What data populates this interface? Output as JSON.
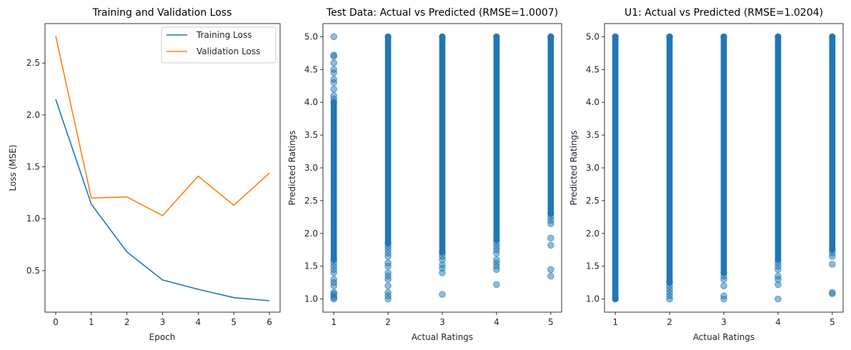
{
  "chart_data": [
    {
      "type": "line",
      "title": "Training and Validation Loss",
      "xlabel": "Epoch",
      "ylabel": "Loss (MSE)",
      "x": [
        0,
        1,
        2,
        3,
        4,
        5,
        6
      ],
      "xlim": [
        -0.3,
        6.3
      ],
      "ylim": [
        0.1,
        2.88
      ],
      "xticks": [
        "0",
        "1",
        "2",
        "3",
        "4",
        "5",
        "6"
      ],
      "yticks": [
        "0.5",
        "1.0",
        "1.5",
        "2.0",
        "2.5"
      ],
      "legend_position": "top-right",
      "grid": false,
      "series": [
        {
          "name": "Training Loss",
          "color": "#1f77b4",
          "values": [
            2.15,
            1.14,
            0.68,
            0.41,
            0.32,
            0.24,
            0.21
          ]
        },
        {
          "name": "Validation Loss",
          "color": "#ff7f0e",
          "values": [
            2.76,
            1.2,
            1.21,
            1.03,
            1.41,
            1.13,
            1.44
          ]
        }
      ]
    },
    {
      "type": "scatter",
      "title": "Test Data: Actual vs Predicted (RMSE=1.0007)",
      "xlabel": "Actual Ratings",
      "ylabel": "Predicted Ratings",
      "xlim": [
        0.8,
        5.2
      ],
      "ylim": [
        0.8,
        5.2
      ],
      "xticks": [
        "1",
        "2",
        "3",
        "4",
        "5"
      ],
      "yticks": [
        "1.0",
        "1.5",
        "2.0",
        "2.5",
        "3.0",
        "3.5",
        "4.0",
        "4.5",
        "5.0"
      ],
      "grid": false,
      "point_color": "#1f77b4",
      "point_alpha": 0.5,
      "columns": [
        {
          "x": 1,
          "band": [
            1.6,
            4.0
          ],
          "points": [
            1.0,
            1.02,
            1.05,
            1.08,
            1.1,
            1.2,
            1.25,
            1.3,
            1.4,
            1.45,
            1.5,
            1.55,
            4.05,
            4.1,
            4.2,
            4.3,
            4.35,
            4.45,
            4.5,
            4.6,
            4.7,
            4.72,
            5.0
          ]
        },
        {
          "x": 2,
          "band": [
            1.85,
            5.0
          ],
          "points": [
            1.0,
            1.05,
            1.1,
            1.2,
            1.3,
            1.35,
            1.4,
            1.5,
            1.55,
            1.65,
            1.7,
            1.75,
            1.8
          ]
        },
        {
          "x": 3,
          "band": [
            1.72,
            5.0
          ],
          "points": [
            1.07,
            1.4,
            1.47,
            1.52,
            1.6,
            1.65,
            1.7
          ]
        },
        {
          "x": 4,
          "band": [
            1.9,
            5.0
          ],
          "points": [
            1.22,
            1.45,
            1.5,
            1.55,
            1.6,
            1.7,
            1.75,
            1.8,
            1.85
          ]
        },
        {
          "x": 5,
          "band": [
            2.3,
            5.0
          ],
          "points": [
            1.35,
            1.45,
            1.82,
            1.93,
            2.15,
            2.2,
            2.25
          ]
        }
      ]
    },
    {
      "type": "scatter",
      "title": "U1: Actual vs Predicted (RMSE=1.0204)",
      "xlabel": "Actual Ratings",
      "ylabel": "Predicted Ratings",
      "xlim": [
        0.8,
        5.2
      ],
      "ylim": [
        0.8,
        5.2
      ],
      "xticks": [
        "1",
        "2",
        "3",
        "4",
        "5"
      ],
      "yticks": [
        "1.0",
        "1.5",
        "2.0",
        "2.5",
        "3.0",
        "3.5",
        "4.0",
        "4.5",
        "5.0"
      ],
      "grid": false,
      "point_color": "#1f77b4",
      "point_alpha": 0.5,
      "columns": [
        {
          "x": 1,
          "band": [
            1.0,
            5.0
          ],
          "points": []
        },
        {
          "x": 2,
          "band": [
            1.25,
            5.0
          ],
          "points": [
            1.0,
            1.05,
            1.1,
            1.15,
            1.2
          ]
        },
        {
          "x": 3,
          "band": [
            1.4,
            5.0
          ],
          "points": [
            1.0,
            1.05,
            1.2,
            1.3,
            1.35
          ]
        },
        {
          "x": 4,
          "band": [
            1.6,
            5.0
          ],
          "points": [
            1.0,
            1.22,
            1.3,
            1.35,
            1.45,
            1.5,
            1.55
          ]
        },
        {
          "x": 5,
          "band": [
            1.75,
            5.0
          ],
          "points": [
            1.08,
            1.1,
            1.53,
            1.65,
            1.7
          ]
        }
      ]
    }
  ]
}
